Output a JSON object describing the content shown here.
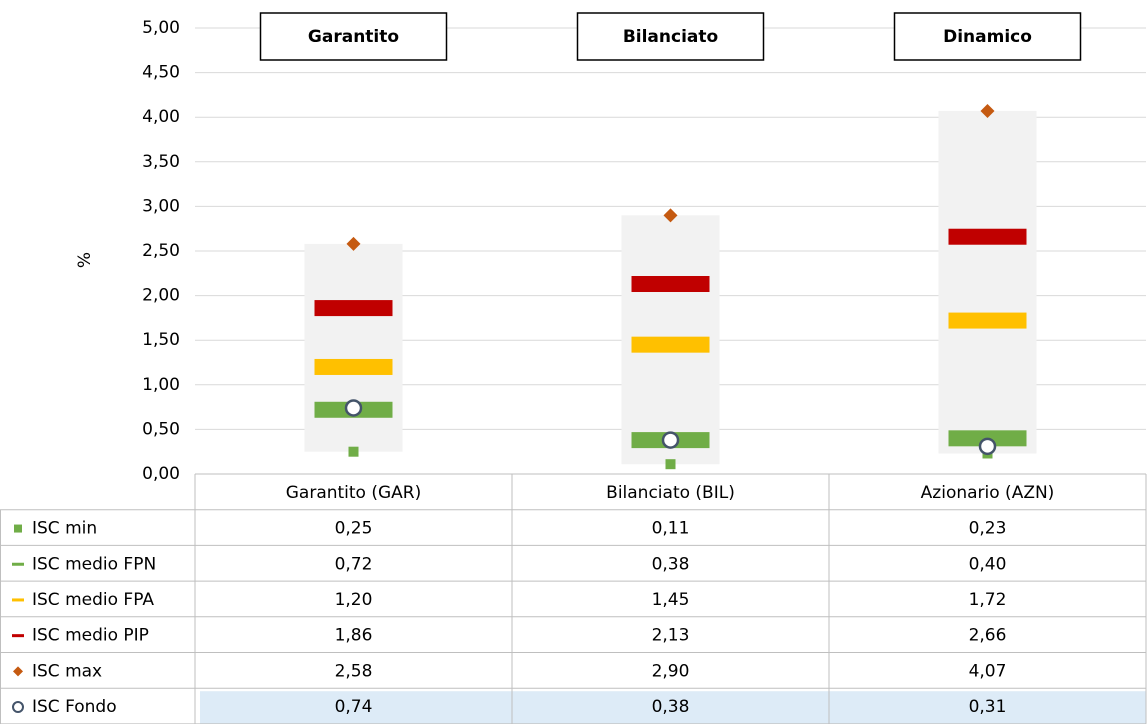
{
  "chart_data": {
    "type": "dot",
    "ylabel": "%",
    "panel_titles": [
      "Garantito",
      "Bilanciato",
      "Dinamico"
    ],
    "categories": [
      "Garantito (GAR)",
      "Bilanciato (BIL)",
      "Azionario (AZN)"
    ],
    "ylim": [
      0,
      5
    ],
    "yticks": [
      {
        "value": 0,
        "label": "0,00"
      },
      {
        "value": 0.5,
        "label": "0,50"
      },
      {
        "value": 1,
        "label": "1,00"
      },
      {
        "value": 1.5,
        "label": "1,50"
      },
      {
        "value": 2,
        "label": "2,00"
      },
      {
        "value": 2.5,
        "label": "2,50"
      },
      {
        "value": 3,
        "label": "3,00"
      },
      {
        "value": 3.5,
        "label": "3,50"
      },
      {
        "value": 4,
        "label": "4,00"
      },
      {
        "value": 4.5,
        "label": "4,50"
      },
      {
        "value": 5,
        "label": "5,00"
      }
    ],
    "grid": true,
    "series": [
      {
        "name": "ISC min",
        "color": "#70ad47",
        "marker": "square",
        "values": [
          0.25,
          0.11,
          0.23
        ],
        "value_labels": [
          "0,25",
          "0,11",
          "0,23"
        ]
      },
      {
        "name": "ISC medio FPN",
        "color": "#70ad47",
        "marker": "bar",
        "values": [
          0.72,
          0.38,
          0.4
        ],
        "value_labels": [
          "0,72",
          "0,38",
          "0,40"
        ]
      },
      {
        "name": "ISC medio FPA",
        "color": "#ffc000",
        "marker": "bar",
        "values": [
          1.2,
          1.45,
          1.72
        ],
        "value_labels": [
          "1,20",
          "1,45",
          "1,72"
        ]
      },
      {
        "name": "ISC medio PIP",
        "color": "#c00000",
        "marker": "bar",
        "values": [
          1.86,
          2.13,
          2.66
        ],
        "value_labels": [
          "1,86",
          "2,13",
          "2,66"
        ]
      },
      {
        "name": "ISC max",
        "color": "#c55a11",
        "marker": "diamond",
        "values": [
          2.58,
          2.9,
          4.07
        ],
        "value_labels": [
          "2,58",
          "2,90",
          "4,07"
        ]
      },
      {
        "name": "ISC Fondo",
        "color": "#44546a",
        "marker": "circle",
        "values": [
          0.74,
          0.38,
          0.31
        ],
        "value_labels": [
          "0,74",
          "0,38",
          "0,31"
        ]
      }
    ]
  }
}
